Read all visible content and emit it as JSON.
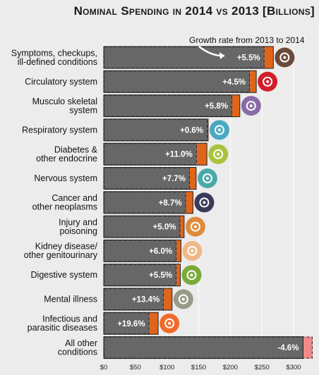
{
  "chart_data": {
    "type": "bar",
    "title": "Nominal Spending in 2014 vs 2013 [Billions]",
    "annotation": "Growth rate from 2013 to 2014",
    "xlim": [
      0,
      320
    ],
    "x_ticks": [
      "$0",
      "$50",
      "$100",
      "$150",
      "$200",
      "$250",
      "$300"
    ],
    "x_tick_values": [
      0,
      50,
      100,
      150,
      200,
      250,
      300
    ],
    "categories": [
      [
        "Symptoms, checkups,",
        "ill-defined conditions"
      ],
      [
        "Circulatory system"
      ],
      [
        "Musculo skeletal",
        "system"
      ],
      [
        "Respiratory system"
      ],
      [
        "Diabetes &",
        "other endocrine"
      ],
      [
        "Nervous system"
      ],
      [
        "Cancer and",
        "other neoplasms"
      ],
      [
        "Injury and",
        "poisoning"
      ],
      [
        "Kidney disease/",
        "other genitourinary"
      ],
      [
        "Digestive system"
      ],
      [
        "Mental illness"
      ],
      [
        "Infectious and",
        "parasitic diseases"
      ],
      [
        "All other",
        "conditions"
      ]
    ],
    "series": [
      {
        "values": [
          254,
          231,
          203,
          164,
          147,
          136,
          130,
          121,
          115,
          115,
          95,
          72,
          330
        ]
      },
      {
        "values": [
          268,
          241,
          215,
          165,
          163,
          146,
          141,
          127,
          122,
          121,
          108,
          86,
          315
        ]
      }
    ],
    "growth_labels": [
      "+5.5%",
      "+4.5%",
      "+5.8%",
      "+0.6%",
      "+11.0%",
      "+7.7%",
      "+8.7%",
      "+5.0%",
      "+6.0%",
      "+5.5%",
      "+13.4%",
      "+19.6%",
      "-4.6%"
    ],
    "icons": [
      "ear-icon",
      "heart-icon",
      "arm-icon",
      "lungs-icon",
      "thyroid-icon",
      "eye-icon",
      "cell-icon",
      "bandage-face-icon",
      "kidneys-icon",
      "intestine-icon",
      "brain-icon",
      "hand-icon",
      ""
    ],
    "icon_colors": [
      "#6b4a3a",
      "#d0202a",
      "#8a6aa8",
      "#4aa9c0",
      "#a8c43a",
      "#4aa9a9",
      "#3a3a5a",
      "#e08a3a",
      "#f0b888",
      "#7aaa3a",
      "#9a9a8a",
      "#f06a2a",
      ""
    ],
    "colors": {
      "bar_2013": "#676767",
      "growth_positive": "#e0651a",
      "growth_negative": "#f08a8a"
    }
  }
}
